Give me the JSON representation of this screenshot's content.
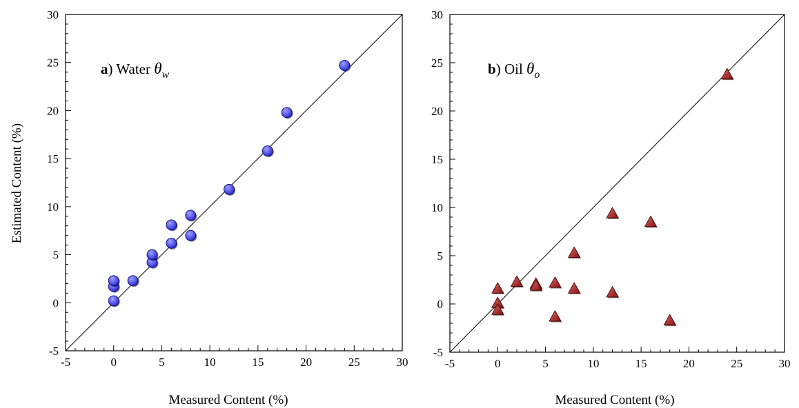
{
  "colors": {
    "water_marker": "#2a2ad8",
    "water_marker_highlight": "#9ea0ff",
    "oil_marker": "#8b1010",
    "oil_marker_highlight": "#d86a6a",
    "line": "#000000"
  },
  "chart_data": [
    {
      "type": "scatter",
      "panel_letter": "a",
      "panel_name": " Water ",
      "panel_symbol": "θ",
      "panel_subscript": "w",
      "xlabel": "Measured Content (%)",
      "ylabel": "Estimated Content (%)",
      "xlim": [
        -5,
        30
      ],
      "ylim": [
        -5,
        30
      ],
      "ticks": [
        -5,
        0,
        5,
        10,
        15,
        20,
        25,
        30
      ],
      "tick_labels": [
        "-5",
        "0",
        "5",
        "10",
        "15",
        "20",
        "25",
        "30"
      ],
      "marker": "sphere",
      "reference_line": "y = x",
      "grid": false,
      "points": [
        {
          "x": 0,
          "y": 0.2
        },
        {
          "x": 0,
          "y": 1.7
        },
        {
          "x": 0,
          "y": 2.3
        },
        {
          "x": 2,
          "y": 2.3
        },
        {
          "x": 4,
          "y": 4.2
        },
        {
          "x": 4,
          "y": 5.0
        },
        {
          "x": 6,
          "y": 6.2
        },
        {
          "x": 6,
          "y": 8.1
        },
        {
          "x": 8,
          "y": 7.0
        },
        {
          "x": 8,
          "y": 9.1
        },
        {
          "x": 12,
          "y": 11.8
        },
        {
          "x": 16,
          "y": 15.8
        },
        {
          "x": 18,
          "y": 19.8
        },
        {
          "x": 24,
          "y": 24.7
        }
      ]
    },
    {
      "type": "scatter",
      "panel_letter": "b",
      "panel_name": " Oil ",
      "panel_symbol": "θ",
      "panel_subscript": "o",
      "xlabel": "Measured Content (%)",
      "ylabel": "",
      "xlim": [
        -5,
        30
      ],
      "ylim": [
        -5,
        30
      ],
      "ticks": [
        -5,
        0,
        5,
        10,
        15,
        20,
        25,
        30
      ],
      "tick_labels": [
        "-5",
        "0",
        "5",
        "10",
        "15",
        "20",
        "25",
        "30"
      ],
      "marker": "triangle",
      "reference_line": "y = x",
      "grid": false,
      "points": [
        {
          "x": 0,
          "y": 1.6
        },
        {
          "x": 0,
          "y": 0.1
        },
        {
          "x": 0,
          "y": -0.6
        },
        {
          "x": 2,
          "y": 2.3
        },
        {
          "x": 4,
          "y": 2.1
        },
        {
          "x": 4,
          "y": 1.9
        },
        {
          "x": 6,
          "y": 2.2
        },
        {
          "x": 6,
          "y": -1.3
        },
        {
          "x": 8,
          "y": 5.3
        },
        {
          "x": 8,
          "y": 1.6
        },
        {
          "x": 12,
          "y": 9.4
        },
        {
          "x": 12,
          "y": 1.2
        },
        {
          "x": 16,
          "y": 8.5
        },
        {
          "x": 18,
          "y": -1.7
        },
        {
          "x": 24,
          "y": 23.8
        }
      ]
    }
  ]
}
